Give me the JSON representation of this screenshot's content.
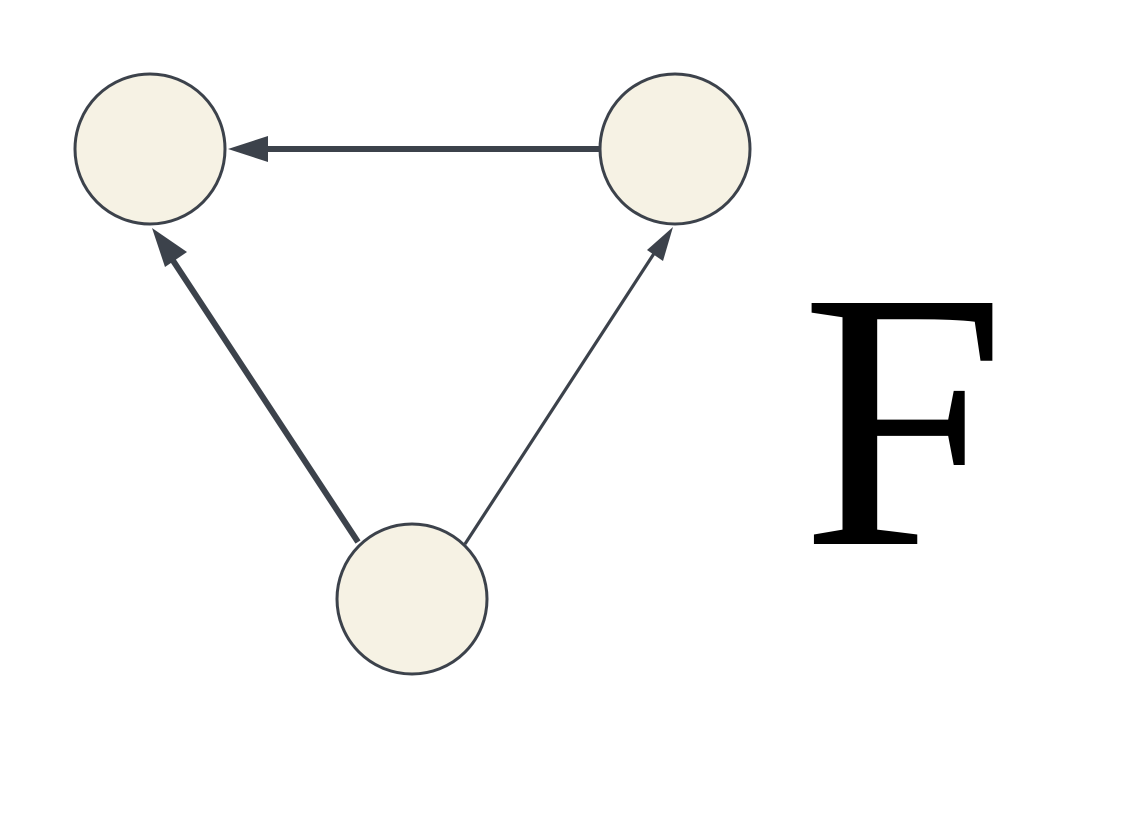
{
  "diagram": {
    "label": "F",
    "colors": {
      "background": "#ffffff",
      "node_fill": "#f6f2e4",
      "node_stroke": "#3c424b",
      "edge": "#3c424b",
      "label": "#000000"
    },
    "nodes": [
      {
        "id": "top-left"
      },
      {
        "id": "top-right"
      },
      {
        "id": "bottom"
      }
    ],
    "edges": [
      {
        "from": "top-right",
        "to": "top-left",
        "weight": "bold"
      },
      {
        "from": "bottom",
        "to": "top-left",
        "weight": "bold"
      },
      {
        "from": "bottom",
        "to": "top-right",
        "weight": "thin"
      }
    ]
  }
}
